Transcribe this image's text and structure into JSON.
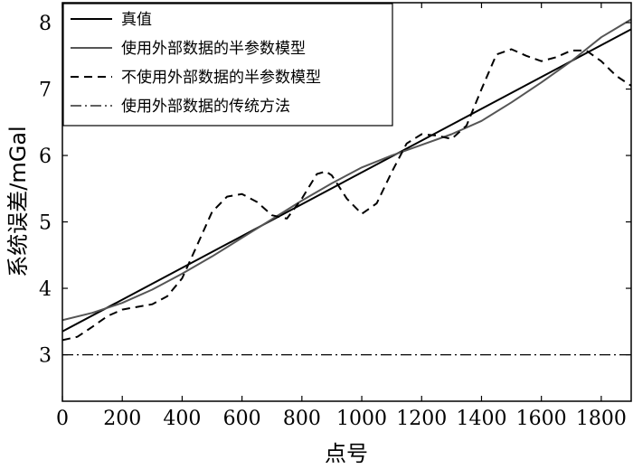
{
  "chart_data": {
    "type": "line",
    "xlabel": "点号",
    "ylabel": "系统误差/mGal",
    "xlim": [
      0,
      1900
    ],
    "ylim": [
      2.3,
      8.3
    ],
    "xticks": [
      0,
      200,
      400,
      600,
      800,
      1000,
      1200,
      1400,
      1600,
      1800
    ],
    "yticks": [
      3,
      4,
      5,
      6,
      7,
      8
    ],
    "legend_position": "top-left",
    "grid": false,
    "series": [
      {
        "name": "真值",
        "style": "solid",
        "color": "#000000",
        "x": [
          0,
          1900
        ],
        "y": [
          3.35,
          7.9
        ]
      },
      {
        "name": "使用外部数据的半参数模型",
        "style": "solid",
        "color": "#555555",
        "x": [
          0,
          100,
          200,
          300,
          400,
          500,
          600,
          700,
          800,
          900,
          1000,
          1100,
          1200,
          1300,
          1400,
          1500,
          1600,
          1700,
          1800,
          1900
        ],
        "y": [
          3.52,
          3.63,
          3.78,
          3.98,
          4.22,
          4.48,
          4.76,
          5.04,
          5.32,
          5.58,
          5.82,
          6.0,
          6.16,
          6.32,
          6.52,
          6.8,
          7.1,
          7.42,
          7.78,
          8.05
        ]
      },
      {
        "name": "不使用外部数据的半参数模型",
        "style": "dashed",
        "color": "#000000",
        "x": [
          0,
          50,
          100,
          150,
          200,
          250,
          300,
          350,
          400,
          450,
          500,
          550,
          600,
          650,
          700,
          750,
          800,
          850,
          880,
          900,
          950,
          1000,
          1050,
          1100,
          1150,
          1200,
          1250,
          1300,
          1350,
          1400,
          1450,
          1500,
          1550,
          1600,
          1650,
          1700,
          1750,
          1800,
          1850,
          1900
        ],
        "y": [
          3.22,
          3.27,
          3.42,
          3.58,
          3.68,
          3.72,
          3.76,
          3.88,
          4.15,
          4.65,
          5.15,
          5.38,
          5.42,
          5.3,
          5.1,
          5.05,
          5.35,
          5.72,
          5.76,
          5.7,
          5.35,
          5.12,
          5.28,
          5.75,
          6.18,
          6.32,
          6.3,
          6.25,
          6.45,
          7.0,
          7.52,
          7.6,
          7.5,
          7.42,
          7.48,
          7.58,
          7.58,
          7.42,
          7.2,
          7.05
        ]
      },
      {
        "name": "使用外部数据的传统方法",
        "style": "dashdot",
        "color": "#000000",
        "x": [
          0,
          1900
        ],
        "y": [
          3.0,
          3.0
        ]
      }
    ]
  }
}
